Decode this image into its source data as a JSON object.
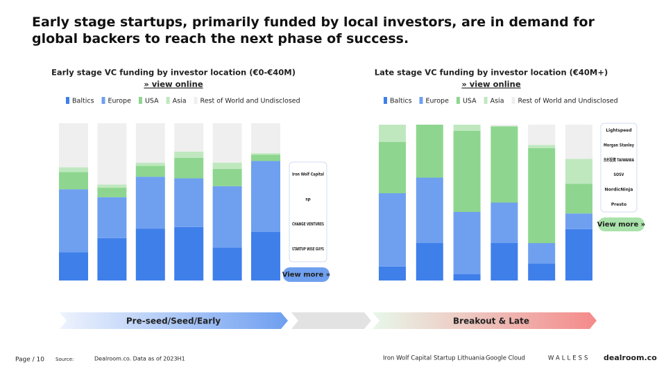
{
  "title": "Early stage startups, primarily funded by local investors, are in demand for global backers to reach the next phase of success.",
  "chart_data": [
    {
      "type": "bar",
      "stacked": true,
      "title": "Early stage VC funding by investor location (€0-€40M)",
      "link": "» view online",
      "categories": [
        null,
        null,
        null,
        null,
        null,
        null
      ],
      "ylim": [
        0,
        100
      ],
      "series": [
        {
          "name": "Baltics",
          "color": "#3f7fea",
          "values": [
            18,
            27,
            33,
            34,
            21,
            31
          ]
        },
        {
          "name": "Europe",
          "color": "#6fa0f0",
          "values": [
            40,
            26,
            33,
            31,
            39,
            45
          ]
        },
        {
          "name": "USA",
          "color": "#8ed68f",
          "values": [
            11,
            6,
            7,
            13,
            11,
            4
          ]
        },
        {
          "name": "Asia",
          "color": "#bfe8bf",
          "values": [
            3,
            2,
            2,
            4,
            4,
            1
          ]
        },
        {
          "name": "Rest of World and Undisclosed",
          "color": "#efefef",
          "values": [
            28,
            39,
            25,
            18,
            25,
            19
          ]
        }
      ],
      "investors": [
        "Iron Wolf Capital",
        "sp",
        "CHANGE VENTURES",
        "STARTUP WISE GUYS"
      ],
      "more": "View more »",
      "stage": "Pre-seed/Seed/Early"
    },
    {
      "type": "bar",
      "stacked": true,
      "title": "Late stage VC funding by investor location (€40M+)",
      "link": "» view online",
      "categories": [
        null,
        null,
        null,
        null,
        null,
        null
      ],
      "ylim": [
        0,
        100
      ],
      "series": [
        {
          "name": "Baltics",
          "color": "#3f7fea",
          "values": [
            9,
            24,
            4,
            24,
            11,
            33
          ]
        },
        {
          "name": "Europe",
          "color": "#6fa0f0",
          "values": [
            47,
            42,
            40,
            26,
            13,
            10
          ]
        },
        {
          "name": "USA",
          "color": "#8ed68f",
          "values": [
            33,
            34,
            52,
            49,
            61,
            19
          ]
        },
        {
          "name": "Asia",
          "color": "#bfe8bf",
          "values": [
            11,
            0,
            4,
            0,
            2,
            16
          ]
        },
        {
          "name": "Rest of World and Undisclosed",
          "color": "#efefef",
          "values": [
            0,
            0,
            0,
            1,
            13,
            22
          ]
        }
      ],
      "investors": [
        "Lightspeed",
        "Morgan Stanley",
        "台杉投資 TAIWANIA",
        "SOSV",
        "NordicNinja",
        "Presto"
      ],
      "more": "View more »",
      "stage": "Breakout & Late"
    }
  ],
  "footer": {
    "page": "Page / 10",
    "source_label": "Source:",
    "source": "Dealroom.co. Data as of 2023H1"
  },
  "partners": [
    "Iron Wolf Capital",
    "Startup Lithuania",
    "Google Cloud",
    "WALLESS",
    "dealroom.co"
  ]
}
